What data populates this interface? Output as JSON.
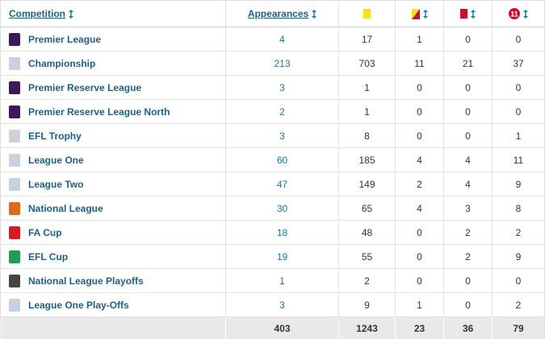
{
  "header": {
    "competition": "Competition",
    "appearances": "Appearances",
    "goals_icon": "11"
  },
  "table": {
    "rows": [
      [
        "Premier League",
        4,
        17,
        1,
        0,
        0
      ],
      [
        "Championship",
        213,
        703,
        11,
        21,
        37
      ],
      [
        "Premier Reserve League",
        3,
        1,
        0,
        0,
        0
      ],
      [
        "Premier Reserve League North",
        2,
        1,
        0,
        0,
        0
      ],
      [
        "EFL Trophy",
        3,
        8,
        0,
        0,
        1
      ],
      [
        "League One",
        60,
        185,
        4,
        4,
        11
      ],
      [
        "League Two",
        47,
        149,
        2,
        4,
        9
      ],
      [
        "National League",
        30,
        65,
        4,
        3,
        8
      ],
      [
        "FA Cup",
        18,
        48,
        0,
        2,
        2
      ],
      [
        "EFL Cup",
        19,
        55,
        0,
        2,
        9
      ],
      [
        "National League Playoffs",
        1,
        2,
        0,
        0,
        0
      ],
      [
        "League One Play-Offs",
        3,
        9,
        1,
        0,
        2
      ]
    ],
    "totals": [
      403,
      1243,
      23,
      36,
      79
    ]
  }
}
